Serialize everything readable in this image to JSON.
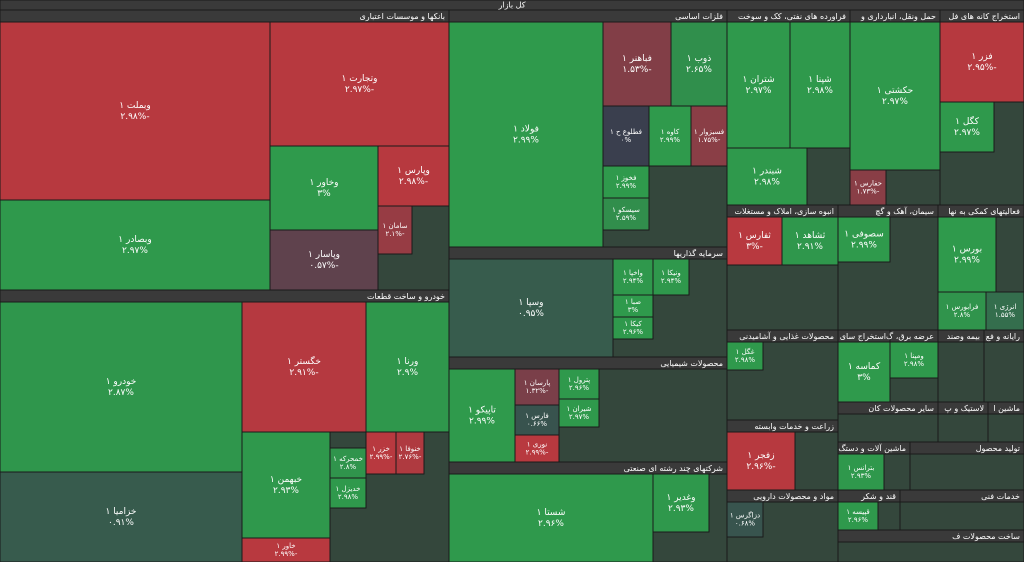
{
  "chart_data": {
    "type": "treemap",
    "title": "کل بازار",
    "sectors": [
      {
        "name": "بانکها و موسسات اعتباری",
        "categories": [
          "وبملت ۱",
          "وبصادر ۱",
          "وتجارت ۱",
          "وخاور ۱",
          "وپاسار ۱",
          "وپارس ۱",
          "سامان ۱"
        ],
        "values": [
          -2.98,
          2.97,
          -2.97,
          3,
          -0.57,
          -2.98,
          -2.1
        ],
        "value_labels": [
          "-۲.۹۸%",
          "۲.۹۷%",
          "-۲.۹۷%",
          "۳%",
          "-۰.۵۷%",
          "-۲.۹۸%",
          "-۲.۱%"
        ]
      },
      {
        "name": "خودرو و ساخت قطعات",
        "categories": [
          "خودرو ۱",
          "خزامیا ۱",
          "خگستر ۱",
          "ورنا ۱",
          "خبهمن ۱",
          "خاور ۱",
          "خمحرکه ۱",
          "خدیزل ۱",
          "خزر ۱",
          "خنوفا ۱"
        ],
        "values": [
          2.87,
          0.91,
          -2.91,
          2.9,
          2.93,
          -2.99,
          2.8,
          2.98,
          -2.99,
          -2.76
        ],
        "value_labels": [
          "۲.۸۷%",
          "۰.۹۱%",
          "-۲.۹۱%",
          "۲.۹%",
          "۲.۹۳%",
          "-۲.۹۹%",
          "۲.۸%",
          "۲.۹۸%",
          "-۲.۹۹%",
          "-۲.۷۶%"
        ]
      },
      {
        "name": "فلزات اساسی",
        "categories": [
          "فولاد ۱",
          "فباهنر ۱",
          "ذوب ۱",
          "فطلوع ح ۱",
          "کاوه ۱",
          "فسبزوار ۱",
          "فخوز ۱",
          "سیسکو ۱"
        ],
        "values": [
          2.99,
          -1.53,
          2.65,
          0,
          2.99,
          -1.75,
          2.99,
          2.59
        ],
        "value_labels": [
          "۲.۹۹%",
          "-۱.۵۳%",
          "۲.۶۵%",
          "۰%",
          "۲.۹۹%",
          "-۱.۷۵%",
          "۲.۹۹%",
          "۲.۵۹%"
        ]
      },
      {
        "name": "سرمایه گذاریها",
        "categories": [
          "وسپا ۱",
          "واخپا ۱",
          "ونیکا ۱",
          "صبا ۱",
          "کیکا ۱"
        ],
        "values": [
          0.95,
          2.94,
          2.94,
          3,
          2.96
        ],
        "value_labels": [
          "۰.۹۵%",
          "۲.۹۴%",
          "۲.۹۴%",
          "۳%",
          "۲.۹۶%"
        ]
      },
      {
        "name": "محصولات شیمیایی",
        "categories": [
          "تاپیکو ۱",
          "پارسان ۱",
          "فارس ۱",
          "نوری ۱",
          "پترول ۱",
          "شیران ۱"
        ],
        "values": [
          2.99,
          -1.32,
          0.66,
          -2.99,
          2.96,
          2.97
        ],
        "value_labels": [
          "۲.۹۹%",
          "-۱.۳۲%",
          "۰.۶۶%",
          "-۲.۹۹%",
          "۲.۹۶%",
          "۲.۹۷%"
        ]
      },
      {
        "name": "شرکتهای چند رشته ای صنعتی",
        "categories": [
          "شستا ۱",
          "وغدیر ۱"
        ],
        "values": [
          2.96,
          2.93
        ],
        "value_labels": [
          "۲.۹۶%",
          "۲.۹۳%"
        ]
      },
      {
        "name": "فراورده های نفتی، کک و سوخت",
        "categories": [
          "شتران ۱",
          "شپنا ۱",
          "شبندر ۱"
        ],
        "values": [
          2.97,
          2.98,
          2.98
        ],
        "value_labels": [
          "۲.۹۷%",
          "۲.۹۸%",
          "۲.۹۸%"
        ]
      },
      {
        "name": "حمل ونقل، انبارداری و",
        "categories": [
          "حکشتی ۱",
          "حفارس ۱"
        ],
        "values": [
          2.97,
          -1.73
        ],
        "value_labels": [
          "۲.۹۷%",
          "-۱.۷۳%"
        ]
      },
      {
        "name": "استخراج کانه های فل",
        "categories": [
          "فزر ۱",
          "کگل ۱"
        ],
        "values": [
          -2.95,
          2.97
        ],
        "value_labels": [
          "-۲.۹۵%",
          "۲.۹۷%"
        ]
      },
      {
        "name": "انبوه سازی، املاک و مستغلات",
        "categories": [
          "ثفارس ۱",
          "ثشاهد ۱"
        ],
        "values": [
          -3,
          2.91
        ],
        "value_labels": [
          "-۳%",
          "۲.۹۱%"
        ]
      },
      {
        "name": "سیمان، آهک و گچ",
        "categories": [
          "سصوفی ۱"
        ],
        "values": [
          2.99
        ],
        "value_labels": [
          "۲.۹۹%"
        ]
      },
      {
        "name": "فعالیتهای کمکی به نها",
        "categories": [
          "بورس ۱",
          "فرابورس ۱",
          "انرژی ۱"
        ],
        "values": [
          2.99,
          2.8,
          1.55
        ],
        "value_labels": [
          "۲.۹۹%",
          "۲.۸%",
          "۱.۵۵%"
        ]
      },
      {
        "name": "محصولات غذایی و آشامیدنی",
        "categories": [
          "غگل ۱"
        ],
        "values": [
          2.98
        ],
        "value_labels": [
          "۲.۹۸%"
        ]
      },
      {
        "name": "استخراج سای",
        "categories": [
          "کماسه ۱"
        ],
        "values": [
          3
        ],
        "value_labels": [
          "۳%"
        ]
      },
      {
        "name": "عرضه برق، گ",
        "categories": [
          "ومپنا ۱"
        ],
        "values": [
          2.98
        ],
        "value_labels": [
          "۲.۹۸%"
        ]
      },
      {
        "name": "بیمه وصند"
      },
      {
        "name": "رایانه و فع"
      },
      {
        "name": "سایر محصولات کان"
      },
      {
        "name": "لاستیک و پ"
      },
      {
        "name": "ماشین ا"
      },
      {
        "name": "زراعت و خدمات وابسته",
        "categories": [
          "زفجر ۱"
        ],
        "values": [
          -2.96
        ],
        "value_labels": [
          "-۲.۹۶%"
        ]
      },
      {
        "name": "ماشین آلات و دستگ",
        "categories": [
          "بترانس ۱"
        ],
        "values": [
          2.93
        ],
        "value_labels": [
          "۲.۹۳%"
        ]
      },
      {
        "name": "تولید محصول"
      },
      {
        "name": "مواد و محصولات دارویی",
        "categories": [
          "دزاگرس ۱"
        ],
        "values": [
          0.68
        ],
        "value_labels": [
          "۰.۶۸%"
        ]
      },
      {
        "name": "قند و شکر",
        "categories": [
          "قپیسه ۱"
        ],
        "values": [
          2.96
        ],
        "value_labels": [
          "۲.۹۶%"
        ]
      },
      {
        "name": "خدمات فنی"
      },
      {
        "name": "ساخت محصولات ف"
      }
    ]
  }
}
